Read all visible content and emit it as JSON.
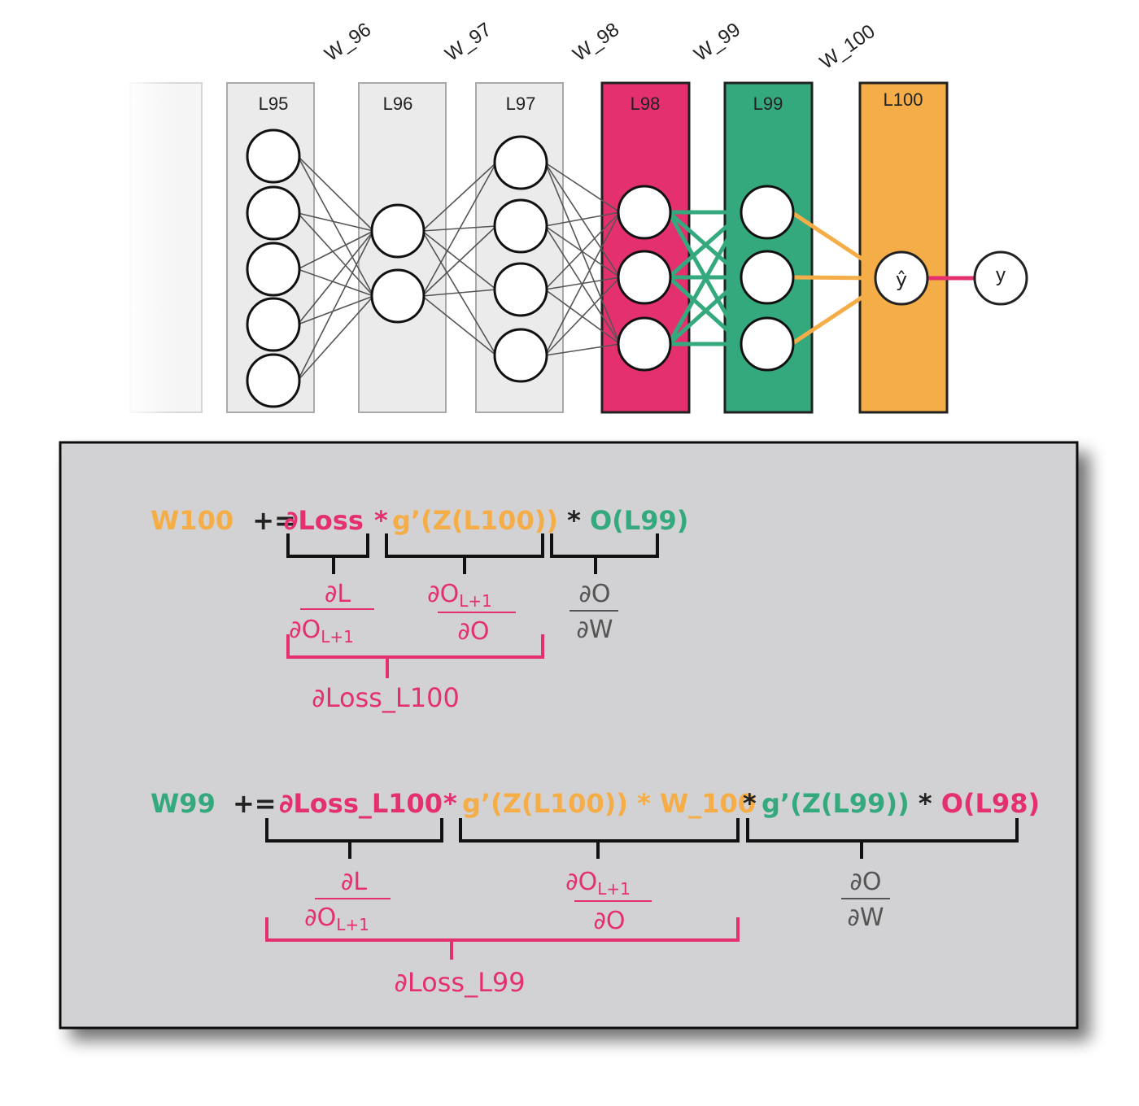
{
  "colors": {
    "pink": "#e5306f",
    "green": "#34a97e",
    "orange": "#f5ad47",
    "gray_layer": "#ebebeb",
    "panel": "#d2d2d4",
    "text_dark": "#222222",
    "text_gray": "#555555"
  },
  "network": {
    "weights": [
      "W_96",
      "W_97",
      "W_98",
      "W_99",
      "W_100"
    ],
    "layers": [
      {
        "label": "",
        "nodes": 0,
        "faded": true
      },
      {
        "label": "L95",
        "nodes": 5,
        "color": "gray"
      },
      {
        "label": "L96",
        "nodes": 2,
        "color": "gray"
      },
      {
        "label": "L97",
        "nodes": 4,
        "color": "gray"
      },
      {
        "label": "L98",
        "nodes": 3,
        "color": "pink"
      },
      {
        "label": "L99",
        "nodes": 3,
        "color": "green"
      },
      {
        "label": "L100",
        "nodes": 1,
        "color": "orange"
      }
    ],
    "yhat_label": "ŷ",
    "y_label": "y"
  },
  "eq1": {
    "lhs": "W100",
    "op": "+=",
    "t1": "∂Loss",
    "star1": "*",
    "t2": "g’(Z(L100))",
    "star2": "*",
    "t3": "O(L99)",
    "frac1_num": "∂L",
    "frac1_den": "∂O",
    "frac1_den_sub": "L+1",
    "frac2_num": "∂O",
    "frac2_num_sub": "L+1",
    "frac2_den": "∂O",
    "frac3_num": "∂O",
    "frac3_den": "∂W",
    "group_label": "∂Loss_L100"
  },
  "eq2": {
    "lhs": "W99",
    "op": "+=",
    "t1": "∂Loss_L100",
    "star1": "*",
    "t2": "g’(Z(L100)) * W_100",
    "star2": "*",
    "t3": "g’(Z(L99))",
    "star3": "*",
    "t4": "O(L98)",
    "frac1_num": "∂L",
    "frac1_den": "∂O",
    "frac1_den_sub": "L+1",
    "frac2_num": "∂O",
    "frac2_num_sub": "L+1",
    "frac2_den": "∂O",
    "frac3_num": "∂O",
    "frac3_den": "∂W",
    "group_label": "∂Loss_L99"
  }
}
